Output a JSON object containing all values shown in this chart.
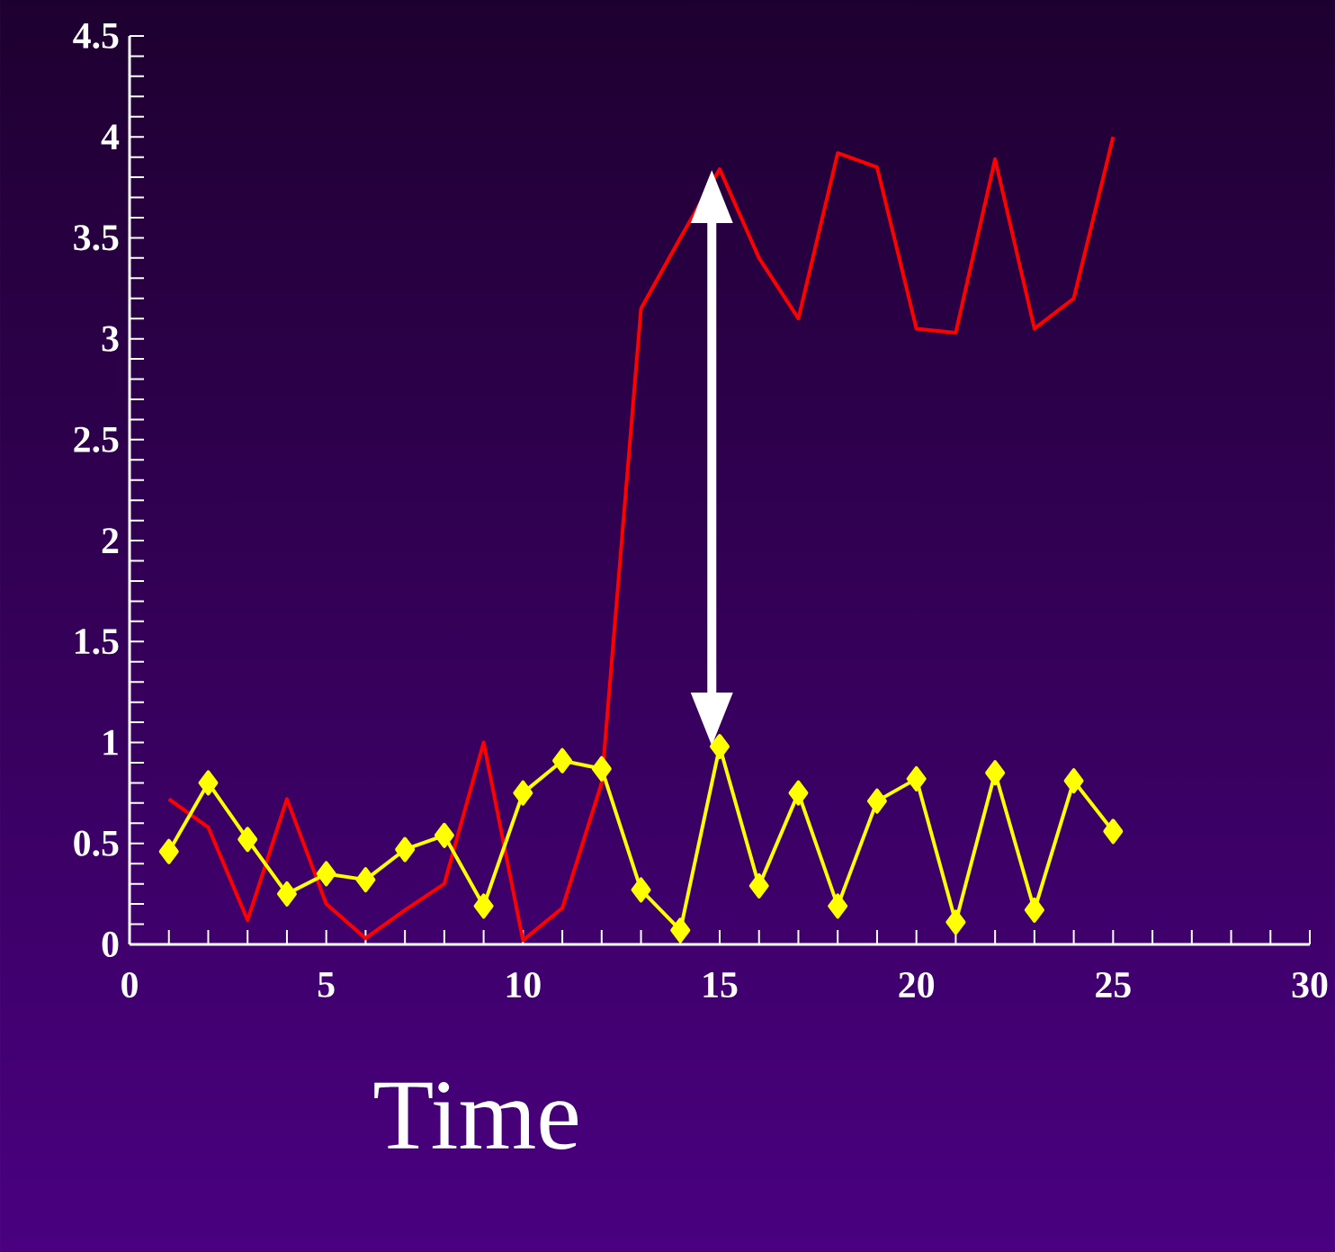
{
  "chart_data": {
    "type": "line",
    "xlabel": "Time",
    "x": [
      1,
      2,
      3,
      4,
      5,
      6,
      7,
      8,
      9,
      10,
      11,
      12,
      13,
      14,
      15,
      16,
      17,
      18,
      19,
      20,
      21,
      22,
      23,
      24,
      25
    ],
    "series": [
      {
        "color": "#ff0000",
        "marker": "none",
        "values": [
          0.72,
          0.58,
          0.12,
          0.72,
          0.2,
          0.03,
          0.17,
          0.3,
          1.0,
          0.02,
          0.18,
          0.8,
          3.15,
          3.5,
          3.84,
          3.4,
          3.1,
          3.92,
          3.85,
          3.05,
          3.03,
          3.89,
          3.05,
          3.2,
          4.0
        ]
      },
      {
        "color": "#ffff00",
        "marker": "diamond",
        "values": [
          0.46,
          0.8,
          0.52,
          0.25,
          0.35,
          0.32,
          0.47,
          0.54,
          0.19,
          0.75,
          0.91,
          0.87,
          0.27,
          0.07,
          0.98,
          0.29,
          0.75,
          0.19,
          0.71,
          0.82,
          0.11,
          0.85,
          0.17,
          0.81,
          0.56
        ]
      }
    ],
    "xlim": [
      0,
      30
    ],
    "xticks": [
      0,
      5,
      10,
      15,
      20,
      25,
      30
    ],
    "ylim": [
      0,
      4.5
    ],
    "yticks": [
      0,
      0.5,
      1,
      1.5,
      2,
      2.5,
      3,
      3.5,
      4,
      4.5
    ]
  }
}
